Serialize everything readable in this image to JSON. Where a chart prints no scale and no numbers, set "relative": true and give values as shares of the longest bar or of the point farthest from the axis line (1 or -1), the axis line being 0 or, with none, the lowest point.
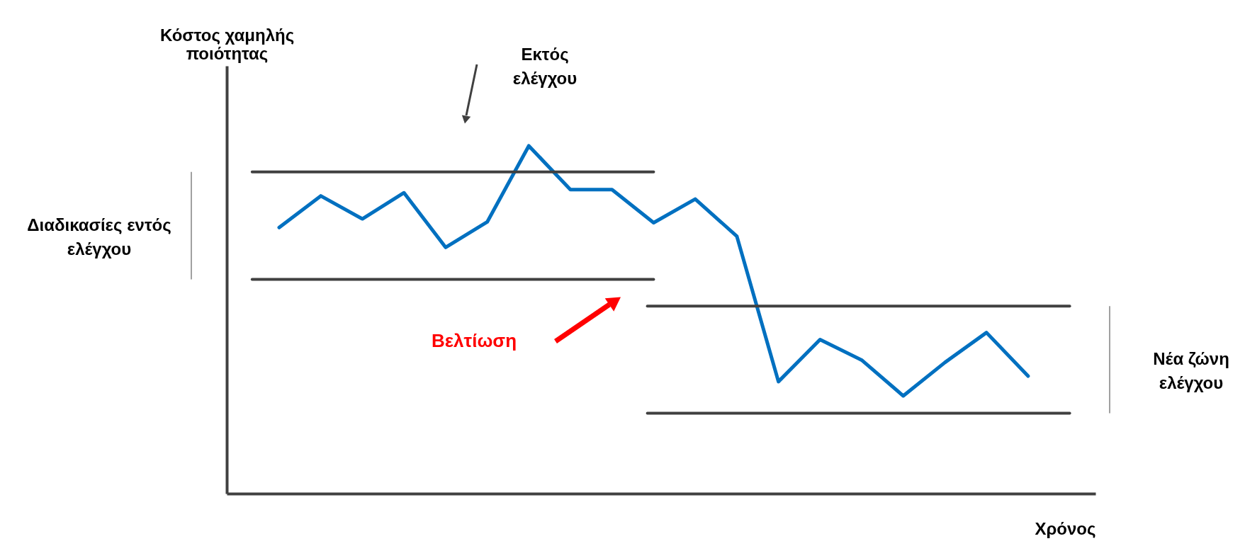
{
  "chart_data": {
    "type": "line",
    "relative": true,
    "ylabel": "Κόστος χαμηλής ποιότητας",
    "xlabel": "Χρόνος",
    "categories": [
      null,
      null,
      null,
      null,
      null,
      null,
      null,
      null,
      null,
      null,
      null,
      null,
      null,
      null,
      null,
      null,
      null,
      null,
      null
    ],
    "series": [
      {
        "color": "#0070c0",
        "values": [
          0.765,
          0.856,
          0.79,
          0.865,
          0.708,
          0.781,
          1,
          0.874,
          0.874,
          0.779,
          0.847,
          0.74,
          0.322,
          0.443,
          0.384,
          0.281,
          0.377,
          0.463,
          0.338
        ]
      }
    ],
    "ref_lines": [
      {
        "axis": "y",
        "value": 0.925,
        "color": "#404040"
      },
      {
        "axis": "y",
        "value": 0.616,
        "color": "#404040"
      },
      {
        "axis": "y",
        "value": 0.539,
        "color": "#404040"
      },
      {
        "axis": "y",
        "value": 0.231,
        "color": "#404040"
      }
    ],
    "annotations": [
      "Εκτός ελέγχου",
      "Βελτίωση",
      "Διαδικασίες εντός ελέγχου",
      "Νέα ζώνη ελέγχου"
    ]
  }
}
